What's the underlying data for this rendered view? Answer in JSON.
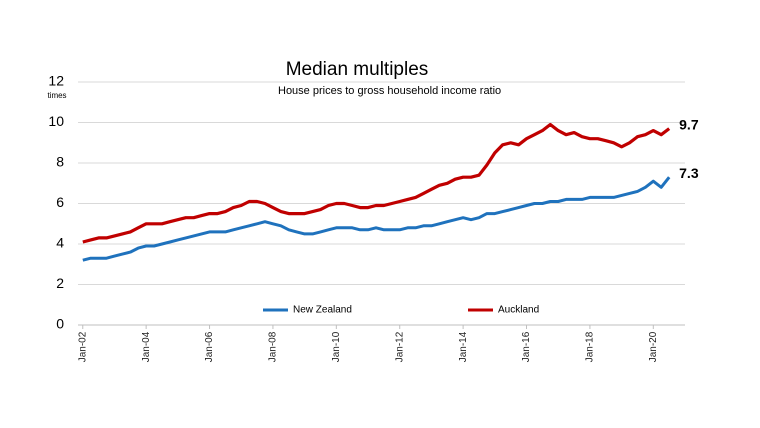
{
  "chart_data": {
    "type": "line",
    "title": "Median multiples",
    "subtitle": "House prices to gross household income ratio",
    "y_unit": "times",
    "xlim": [
      2001.85,
      2021.0
    ],
    "xticks": [
      {
        "value": 2002,
        "label": "Jan-02"
      },
      {
        "value": 2004,
        "label": "Jan-04"
      },
      {
        "value": 2006,
        "label": "Jan-06"
      },
      {
        "value": 2008,
        "label": "Jan-08"
      },
      {
        "value": 2010,
        "label": "Jan-10"
      },
      {
        "value": 2012,
        "label": "Jan-12"
      },
      {
        "value": 2014,
        "label": "Jan-14"
      },
      {
        "value": 2016,
        "label": "Jan-16"
      },
      {
        "value": 2018,
        "label": "Jan-18"
      },
      {
        "value": 2020,
        "label": "Jan-20"
      }
    ],
    "ylim": [
      0,
      12
    ],
    "yticks": [
      0,
      2,
      4,
      6,
      8,
      10,
      12
    ],
    "grid": true,
    "legend": "bottom",
    "x": [
      2002,
      2002.25,
      2002.5,
      2002.75,
      2003,
      2003.25,
      2003.5,
      2003.75,
      2004,
      2004.25,
      2004.5,
      2004.75,
      2005,
      2005.25,
      2005.5,
      2005.75,
      2006,
      2006.25,
      2006.5,
      2006.75,
      2007,
      2007.25,
      2007.5,
      2007.75,
      2008,
      2008.25,
      2008.5,
      2008.75,
      2009,
      2009.25,
      2009.5,
      2009.75,
      2010,
      2010.25,
      2010.5,
      2010.75,
      2011,
      2011.25,
      2011.5,
      2011.75,
      2012,
      2012.25,
      2012.5,
      2012.75,
      2013,
      2013.25,
      2013.5,
      2013.75,
      2014,
      2014.25,
      2014.5,
      2014.75,
      2015,
      2015.25,
      2015.5,
      2015.75,
      2016,
      2016.25,
      2016.5,
      2016.75,
      2017,
      2017.25,
      2017.5,
      2017.75,
      2018,
      2018.25,
      2018.5,
      2018.75,
      2019,
      2019.25,
      2019.5,
      2019.75,
      2020,
      2020.25,
      2020.5
    ],
    "series": [
      {
        "name": "New Zealand",
        "color": "#1f72bd",
        "values": [
          3.2,
          3.3,
          3.3,
          3.3,
          3.4,
          3.5,
          3.6,
          3.8,
          3.9,
          3.9,
          4.0,
          4.1,
          4.2,
          4.3,
          4.4,
          4.5,
          4.6,
          4.6,
          4.6,
          4.7,
          4.8,
          4.9,
          5.0,
          5.1,
          5.0,
          4.9,
          4.7,
          4.6,
          4.5,
          4.5,
          4.6,
          4.7,
          4.8,
          4.8,
          4.8,
          4.7,
          4.7,
          4.8,
          4.7,
          4.7,
          4.7,
          4.8,
          4.8,
          4.9,
          4.9,
          5.0,
          5.1,
          5.2,
          5.3,
          5.2,
          5.3,
          5.5,
          5.5,
          5.6,
          5.7,
          5.8,
          5.9,
          6.0,
          6.0,
          6.1,
          6.1,
          6.2,
          6.2,
          6.2,
          6.3,
          6.3,
          6.3,
          6.3,
          6.4,
          6.5,
          6.6,
          6.8,
          7.1,
          6.8,
          7.3
        ]
      },
      {
        "name": "Auckland",
        "color": "#c00000",
        "values": [
          4.1,
          4.2,
          4.3,
          4.3,
          4.4,
          4.5,
          4.6,
          4.8,
          5.0,
          5.0,
          5.0,
          5.1,
          5.2,
          5.3,
          5.3,
          5.4,
          5.5,
          5.5,
          5.6,
          5.8,
          5.9,
          6.1,
          6.1,
          6.0,
          5.8,
          5.6,
          5.5,
          5.5,
          5.5,
          5.6,
          5.7,
          5.9,
          6.0,
          6.0,
          5.9,
          5.8,
          5.8,
          5.9,
          5.9,
          6.0,
          6.1,
          6.2,
          6.3,
          6.5,
          6.7,
          6.9,
          7.0,
          7.2,
          7.3,
          7.3,
          7.4,
          7.9,
          8.5,
          8.9,
          9.0,
          8.9,
          9.2,
          9.4,
          9.6,
          9.9,
          9.6,
          9.4,
          9.5,
          9.3,
          9.2,
          9.2,
          9.1,
          9.0,
          8.8,
          9.0,
          9.3,
          9.4,
          9.6,
          9.4,
          9.7
        ]
      }
    ]
  }
}
